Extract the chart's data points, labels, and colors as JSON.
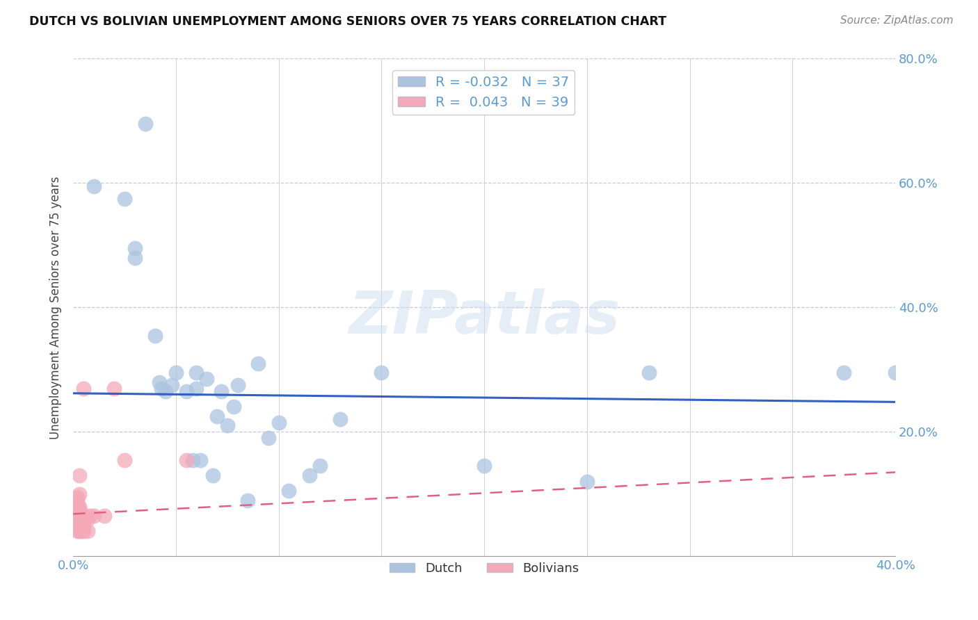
{
  "title": "DUTCH VS BOLIVIAN UNEMPLOYMENT AMONG SENIORS OVER 75 YEARS CORRELATION CHART",
  "source": "Source: ZipAtlas.com",
  "ylabel": "Unemployment Among Seniors over 75 years",
  "xlim": [
    0.0,
    0.4
  ],
  "ylim": [
    0.0,
    0.8
  ],
  "xticks": [
    0.0,
    0.05,
    0.1,
    0.15,
    0.2,
    0.25,
    0.3,
    0.35,
    0.4
  ],
  "yticks": [
    0.0,
    0.2,
    0.4,
    0.6,
    0.8
  ],
  "dutch_R": "-0.032",
  "dutch_N": "37",
  "bolivian_R": "0.043",
  "bolivian_N": "39",
  "dutch_color": "#aac4e0",
  "bolivian_color": "#f4a8b8",
  "dutch_line_color": "#3060c0",
  "bolivian_line_color": "#e06080",
  "axis_color": "#5b9bd5",
  "background_color": "#ffffff",
  "dutch_points": [
    [
      0.01,
      0.595
    ],
    [
      0.025,
      0.575
    ],
    [
      0.03,
      0.495
    ],
    [
      0.03,
      0.48
    ],
    [
      0.035,
      0.695
    ],
    [
      0.04,
      0.355
    ],
    [
      0.042,
      0.28
    ],
    [
      0.043,
      0.27
    ],
    [
      0.045,
      0.265
    ],
    [
      0.048,
      0.275
    ],
    [
      0.05,
      0.295
    ],
    [
      0.055,
      0.265
    ],
    [
      0.058,
      0.155
    ],
    [
      0.06,
      0.295
    ],
    [
      0.06,
      0.27
    ],
    [
      0.062,
      0.155
    ],
    [
      0.065,
      0.285
    ],
    [
      0.068,
      0.13
    ],
    [
      0.07,
      0.225
    ],
    [
      0.072,
      0.265
    ],
    [
      0.075,
      0.21
    ],
    [
      0.078,
      0.24
    ],
    [
      0.08,
      0.275
    ],
    [
      0.085,
      0.09
    ],
    [
      0.09,
      0.31
    ],
    [
      0.095,
      0.19
    ],
    [
      0.1,
      0.215
    ],
    [
      0.105,
      0.105
    ],
    [
      0.115,
      0.13
    ],
    [
      0.12,
      0.145
    ],
    [
      0.13,
      0.22
    ],
    [
      0.15,
      0.295
    ],
    [
      0.2,
      0.145
    ],
    [
      0.25,
      0.12
    ],
    [
      0.28,
      0.295
    ],
    [
      0.375,
      0.295
    ],
    [
      0.4,
      0.295
    ]
  ],
  "bolivian_points": [
    [
      0.002,
      0.04
    ],
    [
      0.002,
      0.048
    ],
    [
      0.002,
      0.055
    ],
    [
      0.002,
      0.06
    ],
    [
      0.002,
      0.065
    ],
    [
      0.002,
      0.07
    ],
    [
      0.002,
      0.075
    ],
    [
      0.002,
      0.08
    ],
    [
      0.002,
      0.085
    ],
    [
      0.002,
      0.09
    ],
    [
      0.002,
      0.095
    ],
    [
      0.003,
      0.04
    ],
    [
      0.003,
      0.048
    ],
    [
      0.003,
      0.055
    ],
    [
      0.003,
      0.06
    ],
    [
      0.003,
      0.065
    ],
    [
      0.003,
      0.07
    ],
    [
      0.003,
      0.075
    ],
    [
      0.003,
      0.08
    ],
    [
      0.003,
      0.1
    ],
    [
      0.003,
      0.13
    ],
    [
      0.004,
      0.04
    ],
    [
      0.004,
      0.048
    ],
    [
      0.004,
      0.055
    ],
    [
      0.004,
      0.06
    ],
    [
      0.004,
      0.07
    ],
    [
      0.005,
      0.04
    ],
    [
      0.005,
      0.048
    ],
    [
      0.005,
      0.055
    ],
    [
      0.005,
      0.06
    ],
    [
      0.005,
      0.27
    ],
    [
      0.007,
      0.04
    ],
    [
      0.007,
      0.06
    ],
    [
      0.008,
      0.065
    ],
    [
      0.01,
      0.065
    ],
    [
      0.015,
      0.065
    ],
    [
      0.02,
      0.27
    ],
    [
      0.025,
      0.155
    ],
    [
      0.055,
      0.155
    ]
  ],
  "dutch_trend": [
    0.0,
    0.4,
    0.262,
    0.248
  ],
  "bolivian_trend": [
    0.0,
    0.4,
    0.068,
    0.135
  ]
}
